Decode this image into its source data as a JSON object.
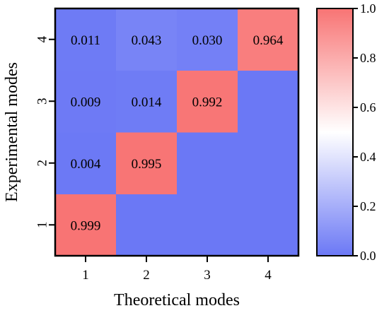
{
  "chart_data": {
    "type": "heatmap",
    "xlabel": "Theoretical modes",
    "ylabel": "Experimental modes",
    "x_categories": [
      "1",
      "2",
      "3",
      "4"
    ],
    "y_categories": [
      "1",
      "2",
      "3",
      "4"
    ],
    "values": [
      [
        0.999,
        null,
        null,
        null
      ],
      [
        0.004,
        0.995,
        null,
        null
      ],
      [
        0.009,
        0.014,
        0.992,
        null
      ],
      [
        0.011,
        0.043,
        0.03,
        0.964
      ]
    ],
    "display_values": [
      [
        "0.999",
        "",
        "",
        ""
      ],
      [
        "0.004",
        "0.995",
        "",
        ""
      ],
      [
        "0.009",
        "0.014",
        "0.992",
        ""
      ],
      [
        "0.011",
        "0.043",
        "0.030",
        "0.964"
      ]
    ],
    "colorbar": {
      "min": 0.0,
      "max": 1.0,
      "ticks": [
        "0.0",
        "0.2",
        "0.4",
        "0.6",
        "0.8",
        "1.0"
      ],
      "colormap": [
        "#6b78f5",
        "#ffffff",
        "#f87474"
      ]
    },
    "default_cell_value": 0.0
  }
}
